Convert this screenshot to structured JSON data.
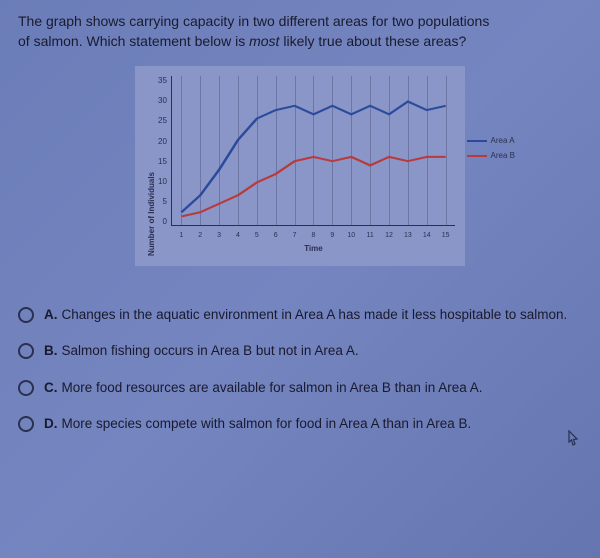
{
  "question": {
    "line1": "The graph shows carrying capacity in two different areas for two populations",
    "line2_pre": "of salmon. Which statement below is ",
    "line2_em": "most",
    "line2_post": " likely true about these areas?"
  },
  "chart": {
    "type": "line",
    "y_label": "Number of Individuals",
    "x_label": "Time",
    "y_ticks": [
      "35",
      "30",
      "25",
      "20",
      "15",
      "10",
      "5",
      "0"
    ],
    "x_ticks": [
      "1",
      "2",
      "3",
      "4",
      "5",
      "6",
      "7",
      "8",
      "9",
      "10",
      "11",
      "12",
      "13",
      "14",
      "15"
    ],
    "ylim": [
      0,
      35
    ],
    "xlim": [
      1,
      15
    ],
    "series_a": {
      "label": "Area A",
      "color": "#2a4b9b",
      "line_width": 2,
      "values": [
        3,
        7,
        13,
        20,
        25,
        27,
        28,
        26,
        28,
        26,
        28,
        26,
        29,
        27,
        28
      ]
    },
    "series_b": {
      "label": "Area B",
      "color": "#b83a3a",
      "line_width": 2,
      "values": [
        2,
        3,
        5,
        7,
        10,
        12,
        15,
        16,
        15,
        16,
        14,
        16,
        15,
        16,
        16
      ]
    },
    "grid_color": "rgba(42,48,80,0.3)",
    "background_color": "#8a95c8",
    "label_fontsize": 8
  },
  "options": {
    "a": {
      "letter": "A.",
      "text": "Changes in the aquatic environment in Area A has made it less hospitable to salmon."
    },
    "b": {
      "letter": "B.",
      "text": "Salmon fishing occurs in Area B but not in Area A."
    },
    "c": {
      "letter": "C.",
      "text": "More food resources are available for salmon in Area B than in Area A."
    },
    "d": {
      "letter": "D.",
      "text": "More species compete with salmon for food in Area A than in Area B."
    }
  }
}
